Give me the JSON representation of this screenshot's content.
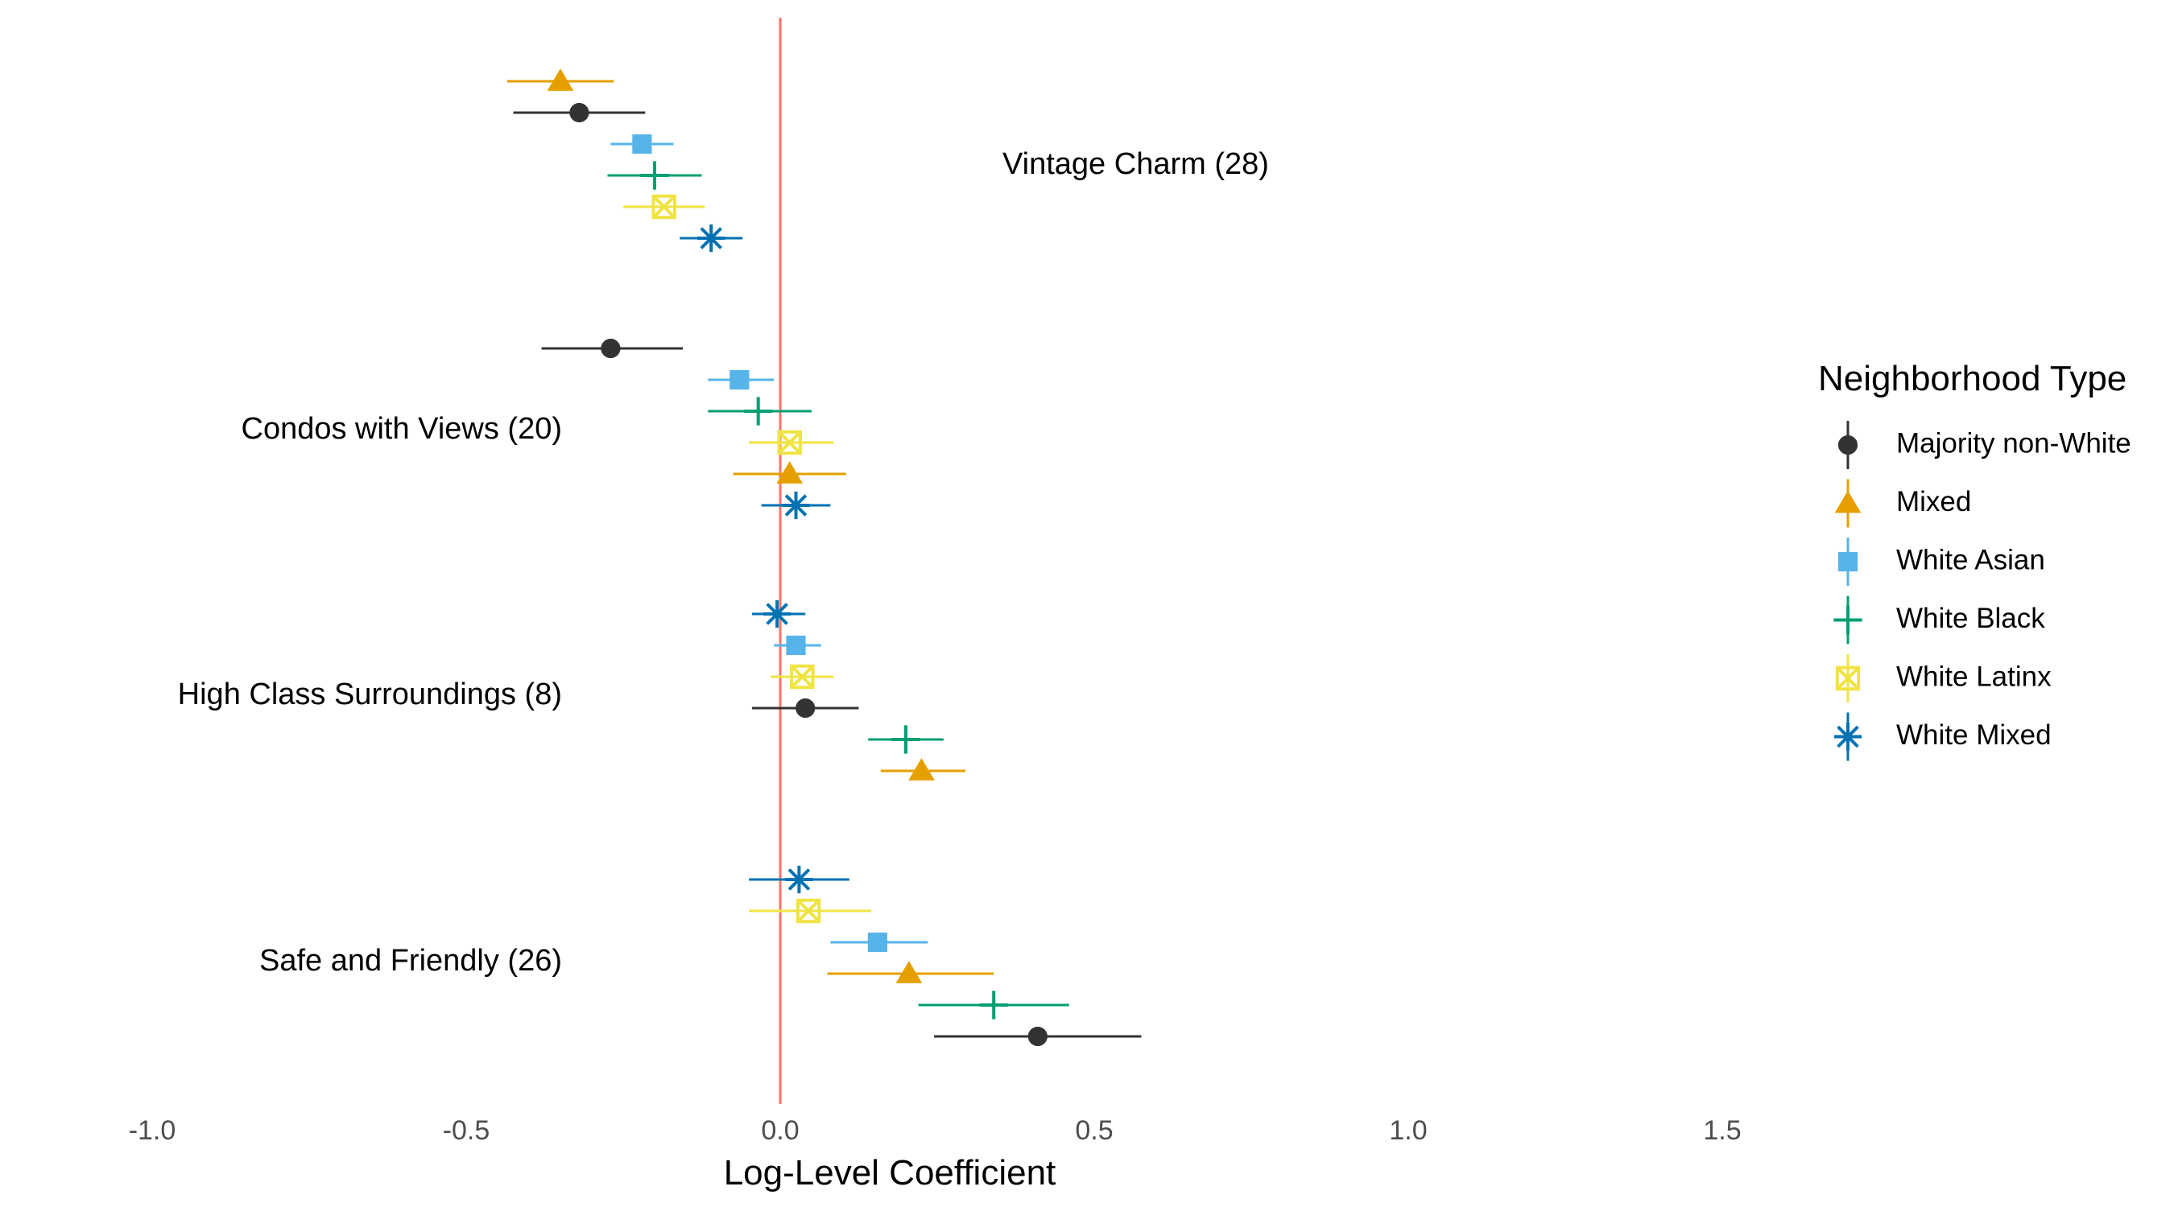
{
  "chart_data": {
    "type": "scatter",
    "subtype": "coefficient-plot-with-error-bars",
    "xlabel": "Log-Level Coefficient",
    "xlim": [
      -1.0,
      2.0
    ],
    "xticks": [
      -1.0,
      -0.5,
      0.0,
      0.5,
      1.0,
      1.5
    ],
    "xtick_labels": [
      "-1.0",
      "-0.5",
      "0.0",
      "0.5",
      "1.0",
      "1.5"
    ],
    "reference_line": {
      "x": 0,
      "color": "#f8766d"
    },
    "grid": false,
    "legend": {
      "title": "Neighborhood Type",
      "placement": "right",
      "entries": [
        {
          "name": "Majority non-White",
          "color": "#333333",
          "shape": "circle"
        },
        {
          "name": "Mixed",
          "color": "#E69F00",
          "shape": "triangle"
        },
        {
          "name": "White Asian",
          "color": "#56B4E9",
          "shape": "square"
        },
        {
          "name": "White Black",
          "color": "#009E73",
          "shape": "plus"
        },
        {
          "name": "White Latinx",
          "color": "#F0E442",
          "shape": "square-x"
        },
        {
          "name": "White Mixed",
          "color": "#0072B2",
          "shape": "asterisk"
        }
      ]
    },
    "groups": [
      {
        "label": "Vintage Charm (28)",
        "label_side": "right",
        "points": [
          {
            "series": "Mixed",
            "estimate": -0.35,
            "low": -0.435,
            "high": -0.265
          },
          {
            "series": "Majority non-White",
            "estimate": -0.32,
            "low": -0.425,
            "high": -0.215
          },
          {
            "series": "White Asian",
            "estimate": -0.22,
            "low": -0.27,
            "high": -0.17
          },
          {
            "series": "White Black",
            "estimate": -0.2,
            "low": -0.275,
            "high": -0.125
          },
          {
            "series": "White Latinx",
            "estimate": -0.185,
            "low": -0.25,
            "high": -0.12
          },
          {
            "series": "White Mixed",
            "estimate": -0.11,
            "low": -0.16,
            "high": -0.06
          }
        ]
      },
      {
        "label": "Condos with Views (20)",
        "label_side": "left",
        "points": [
          {
            "series": "Majority non-White",
            "estimate": -0.27,
            "low": -0.38,
            "high": -0.155
          },
          {
            "series": "White Asian",
            "estimate": -0.065,
            "low": -0.115,
            "high": -0.01
          },
          {
            "series": "White Black",
            "estimate": -0.035,
            "low": -0.115,
            "high": 0.05
          },
          {
            "series": "White Latinx",
            "estimate": 0.015,
            "low": -0.05,
            "high": 0.085
          },
          {
            "series": "Mixed",
            "estimate": 0.015,
            "low": -0.075,
            "high": 0.105
          },
          {
            "series": "White Mixed",
            "estimate": 0.025,
            "low": -0.03,
            "high": 0.08
          }
        ]
      },
      {
        "label": "High Class Surroundings (8)",
        "label_side": "left",
        "points": [
          {
            "series": "White Mixed",
            "estimate": -0.005,
            "low": -0.045,
            "high": 0.04
          },
          {
            "series": "White Asian",
            "estimate": 0.025,
            "low": -0.01,
            "high": 0.065
          },
          {
            "series": "White Latinx",
            "estimate": 0.035,
            "low": -0.015,
            "high": 0.085
          },
          {
            "series": "Majority non-White",
            "estimate": 0.04,
            "low": -0.045,
            "high": 0.125
          },
          {
            "series": "White Black",
            "estimate": 0.2,
            "low": 0.14,
            "high": 0.26
          },
          {
            "series": "Mixed",
            "estimate": 0.225,
            "low": 0.16,
            "high": 0.295
          }
        ]
      },
      {
        "label": "Safe and Friendly (26)",
        "label_side": "left",
        "points": [
          {
            "series": "White Mixed",
            "estimate": 0.03,
            "low": -0.05,
            "high": 0.11
          },
          {
            "series": "White Latinx",
            "estimate": 0.045,
            "low": -0.05,
            "high": 0.145
          },
          {
            "series": "White Asian",
            "estimate": 0.155,
            "low": 0.08,
            "high": 0.235
          },
          {
            "series": "Mixed",
            "estimate": 0.205,
            "low": 0.075,
            "high": 0.34
          },
          {
            "series": "White Black",
            "estimate": 0.34,
            "low": 0.22,
            "high": 0.46
          },
          {
            "series": "Majority non-White",
            "estimate": 0.41,
            "low": 0.245,
            "high": 0.575
          }
        ]
      }
    ]
  }
}
